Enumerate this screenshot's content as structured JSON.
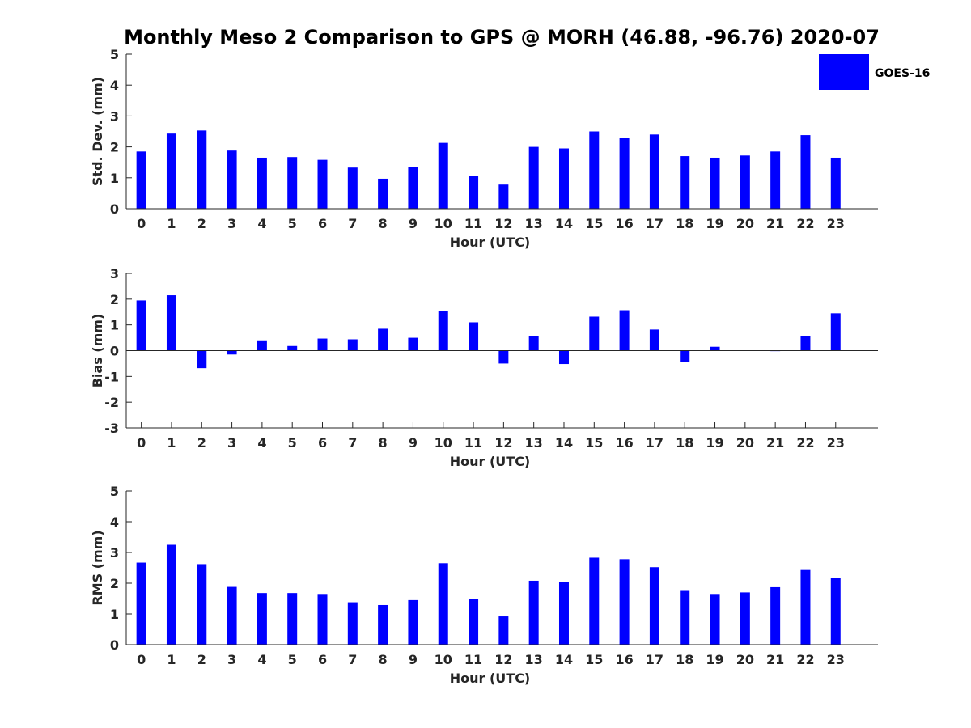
{
  "title": "Monthly Meso 2 Comparison to GPS @ MORH (46.88, -96.76) 2020-07",
  "legend": {
    "label": "GOES-16",
    "placement": "top-right"
  },
  "colors": {
    "series": "#0000ff",
    "axis": "#262626",
    "text": "#000000"
  },
  "chart_data": [
    {
      "type": "bar",
      "categories": [
        "0",
        "1",
        "2",
        "3",
        "4",
        "5",
        "6",
        "7",
        "8",
        "9",
        "10",
        "11",
        "12",
        "13",
        "14",
        "15",
        "16",
        "17",
        "18",
        "19",
        "20",
        "21",
        "22",
        "23"
      ],
      "series": [
        {
          "name": "GOES-16",
          "values": [
            1.85,
            2.43,
            2.53,
            1.88,
            1.65,
            1.67,
            1.58,
            1.33,
            0.97,
            1.35,
            2.13,
            1.05,
            0.78,
            2.0,
            1.95,
            2.5,
            2.3,
            2.4,
            1.7,
            1.65,
            1.72,
            1.85,
            2.38,
            1.65
          ]
        }
      ],
      "xlabel": "Hour (UTC)",
      "ylabel": "Std. Dev. (mm)",
      "ylim": [
        0,
        5
      ],
      "yticks": [
        0,
        1,
        2,
        3,
        4,
        5
      ],
      "grid": false
    },
    {
      "type": "bar",
      "categories": [
        "0",
        "1",
        "2",
        "3",
        "4",
        "5",
        "6",
        "7",
        "8",
        "9",
        "10",
        "11",
        "12",
        "13",
        "14",
        "15",
        "16",
        "17",
        "18",
        "19",
        "20",
        "21",
        "22",
        "23"
      ],
      "series": [
        {
          "name": "GOES-16",
          "values": [
            1.95,
            2.15,
            -0.68,
            -0.15,
            0.4,
            0.18,
            0.47,
            0.44,
            0.85,
            0.5,
            1.53,
            1.1,
            -0.5,
            0.55,
            -0.52,
            1.32,
            1.57,
            0.82,
            -0.43,
            0.15,
            0.0,
            -0.02,
            0.55,
            1.45
          ]
        }
      ],
      "xlabel": "Hour (UTC)",
      "ylabel": "Bias (mm)",
      "ylim": [
        -3,
        3
      ],
      "yticks": [
        -3,
        -2,
        -1,
        0,
        1,
        2,
        3
      ],
      "grid": false
    },
    {
      "type": "bar",
      "categories": [
        "0",
        "1",
        "2",
        "3",
        "4",
        "5",
        "6",
        "7",
        "8",
        "9",
        "10",
        "11",
        "12",
        "13",
        "14",
        "15",
        "16",
        "17",
        "18",
        "19",
        "20",
        "21",
        "22",
        "23"
      ],
      "series": [
        {
          "name": "GOES-16",
          "values": [
            2.67,
            3.25,
            2.62,
            1.88,
            1.68,
            1.68,
            1.65,
            1.38,
            1.29,
            1.45,
            2.65,
            1.5,
            0.92,
            2.08,
            2.05,
            2.83,
            2.78,
            2.52,
            1.75,
            1.65,
            1.7,
            1.87,
            2.43,
            2.18
          ]
        }
      ],
      "xlabel": "Hour (UTC)",
      "ylabel": "RMS (mm)",
      "ylim": [
        0,
        5
      ],
      "yticks": [
        0,
        1,
        2,
        3,
        4,
        5
      ],
      "grid": false
    }
  ]
}
